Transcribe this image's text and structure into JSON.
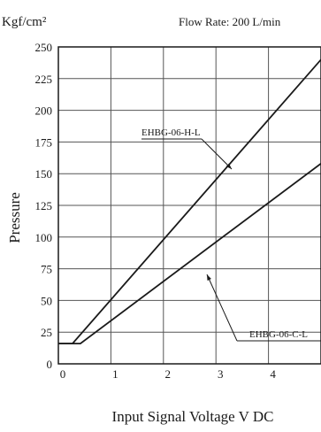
{
  "chart_data": {
    "type": "line",
    "unit_label": "Kgf/cm²",
    "subtitle": "Flow Rate: 200 L/min",
    "xlabel": "Input Signal Voltage V DC",
    "ylabel": "Pressure",
    "xlim": [
      0,
      5
    ],
    "ylim": [
      0,
      250
    ],
    "x_ticks": [
      "0",
      "1",
      "2",
      "3",
      "4"
    ],
    "y_ticks": [
      "0",
      "25",
      "50",
      "75",
      "100",
      "125",
      "150",
      "175",
      "200",
      "225",
      "250"
    ],
    "grid": true,
    "series": [
      {
        "name": "EHBG-06-H-L",
        "points": [
          [
            0,
            16
          ],
          [
            0.27,
            16
          ],
          [
            5,
            240
          ]
        ]
      },
      {
        "name": "EHBG-06-C-L",
        "points": [
          [
            0,
            16
          ],
          [
            0.42,
            16
          ],
          [
            5,
            158
          ]
        ]
      }
    ],
    "annotations": [
      {
        "text": "EHBG-06-H-L",
        "series": 0
      },
      {
        "text": "EHBG-06-C-L",
        "series": 1
      }
    ]
  }
}
